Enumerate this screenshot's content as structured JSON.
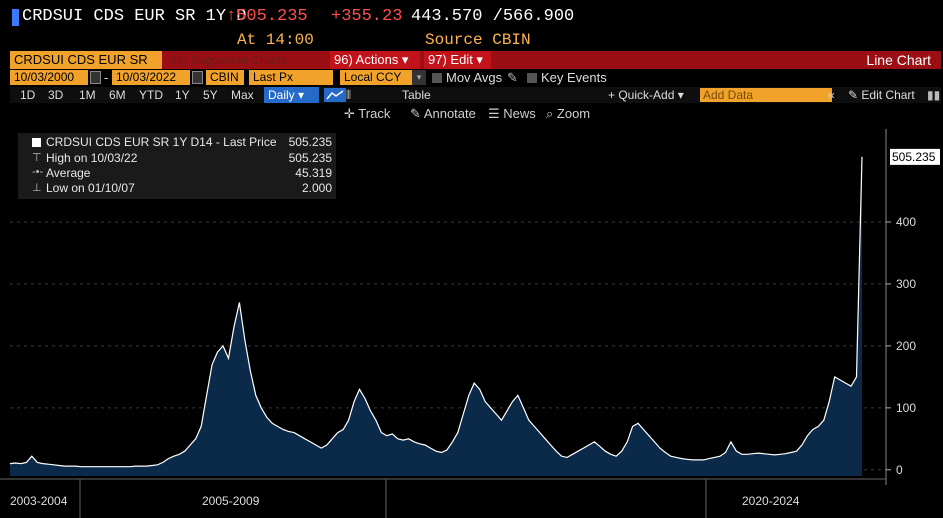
{
  "header": {
    "security": "CRDSUI CDS EUR SR 1Y D",
    "last_price": "↑505.235",
    "change": "+355.23",
    "low_high": "443.570 /566.900",
    "at_time": "At 14:00",
    "source": "Source CBIN"
  },
  "toolbar": {
    "ticker_label": "CRDSUI CDS EUR SR",
    "suggested_charts": "94) Suggested Charts",
    "actions": "96) Actions ▾",
    "edit": "97) Edit ▾",
    "chart_type": "Line Chart"
  },
  "settings": {
    "start_date": "10/03/2000",
    "end_date": "10/03/2022",
    "source": "CBIN",
    "field": "Last Px",
    "currency": "Local CCY",
    "mov_avgs": "Mov Avgs",
    "key_events": "Key Events"
  },
  "periods": [
    "1D",
    "3D",
    "1M",
    "6M",
    "YTD",
    "1Y",
    "5Y",
    "Max"
  ],
  "period_selected": "Daily ▾",
  "view": {
    "table": "Table",
    "quick_add": "+ Quick-Add ▾",
    "add_data_placeholder": "Add Data",
    "collapse": "«",
    "edit_chart": "Edit Chart"
  },
  "tools": {
    "track": "Track",
    "annotate": "Annotate",
    "news": "News",
    "zoom": "Zoom"
  },
  "legend": {
    "series_label": "CRDSUI CDS EUR SR 1Y D14 - Last Price",
    "series_value": "505.235",
    "high_label": "High on 10/03/22",
    "high_value": "505.235",
    "avg_label": "Average",
    "avg_value": "45.319",
    "low_label": "Low on 01/10/07",
    "low_value": "2.000"
  },
  "colors": {
    "series_fill": "#0b2a4a",
    "series_line": "#ffffff",
    "accent_orange": "#f0a22a",
    "accent_red": "#9b0f14",
    "price_red": "#ff4f4f"
  },
  "chart_data": {
    "type": "area",
    "title": "",
    "xlabel": "",
    "ylabel": "",
    "ylim": [
      -10,
      550
    ],
    "y_ticks": [
      0,
      100,
      200,
      300,
      400
    ],
    "last_value_label": "505.235",
    "x_section_labels": [
      "2003-2004",
      "2005-2009",
      "2020-2024"
    ],
    "series": [
      {
        "values": [
          10,
          11,
          10,
          12,
          22,
          12,
          10,
          9,
          8,
          7,
          6,
          6,
          6,
          5,
          5,
          5,
          5,
          5,
          5,
          5,
          5,
          5,
          5,
          6,
          6,
          6,
          7,
          8,
          12,
          18,
          22,
          25,
          30,
          40,
          50,
          70,
          120,
          170,
          190,
          200,
          180,
          230,
          270,
          210,
          160,
          120,
          100,
          85,
          75,
          70,
          65,
          62,
          60,
          55,
          50,
          45,
          40,
          35,
          40,
          50,
          60,
          65,
          80,
          110,
          130,
          115,
          95,
          80,
          60,
          55,
          58,
          50,
          48,
          50,
          45,
          42,
          40,
          35,
          30,
          28,
          32,
          45,
          60,
          90,
          120,
          140,
          130,
          110,
          100,
          90,
          80,
          95,
          110,
          120,
          100,
          80,
          70,
          60,
          50,
          40,
          30,
          22,
          20,
          25,
          30,
          35,
          40,
          45,
          38,
          30,
          25,
          22,
          30,
          45,
          70,
          75,
          65,
          55,
          45,
          35,
          28,
          22,
          20,
          18,
          17,
          16,
          16,
          16,
          18,
          20,
          22,
          28,
          45,
          30,
          25,
          25,
          26,
          27,
          26,
          25,
          24,
          25,
          26,
          28,
          30,
          40,
          55,
          65,
          70,
          80,
          110,
          150,
          145,
          140,
          135,
          150,
          505
        ]
      }
    ]
  }
}
